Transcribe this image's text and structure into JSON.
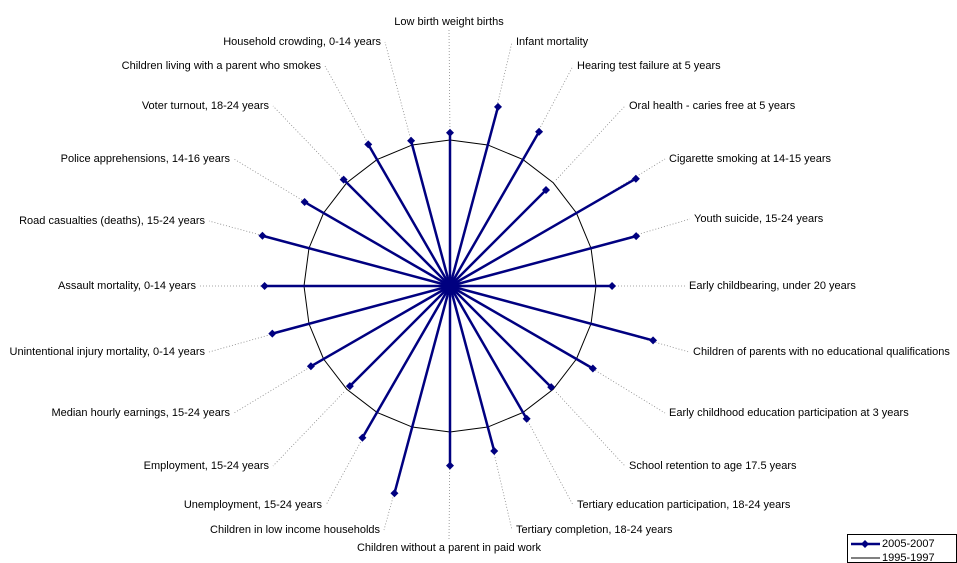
{
  "chart_data": {
    "type": "radar",
    "categories": [
      "Low birth weight births",
      "Infant mortality",
      "Hearing test failure at 5 years",
      "Oral health - caries free at 5 years",
      "Cigarette smoking at 14-15 years",
      "Youth suicide, 15-24 years",
      "Early childbearing, under 20 years",
      "Children of parents with no educational qualifications",
      "Early childhood education participation at 3 years",
      "School retention to age 17.5 years",
      "Tertiary education participation, 18-24 years",
      "Tertiary completion, 18-24 years",
      "Children without a parent in paid work",
      "Children in low income households",
      "Unemployment, 15-24 years",
      "Employment, 15-24 years",
      "Median hourly earnings, 15-24 years",
      "Unintentional injury mortality, 0-14 years",
      "Assault mortality, 0-14 years",
      "Road casualties (deaths), 15-24 years",
      "Police apprehensions, 14-16 years",
      "Voter turnout, 18-24 years",
      "Children living with a parent who smokes",
      "Household crowding, 0-14 years"
    ],
    "series": [
      {
        "name": "2005-2007",
        "color": "#000080",
        "values": [
          1.05,
          1.27,
          1.22,
          0.93,
          1.47,
          1.32,
          1.11,
          1.44,
          1.13,
          0.98,
          1.05,
          1.17,
          1.23,
          1.47,
          1.2,
          0.97,
          1.1,
          1.26,
          1.27,
          1.33,
          1.15,
          1.03,
          1.12,
          1.03
        ]
      },
      {
        "name": "1995-1997",
        "color": "#000000",
        "values": [
          1,
          1,
          1,
          1,
          1,
          1,
          1,
          1,
          1,
          1,
          1,
          1,
          1,
          1,
          1,
          1,
          1,
          1,
          1,
          1,
          1,
          1,
          1,
          1
        ]
      }
    ],
    "rlim": [
      0,
      1.6
    ],
    "legend": "bottom-right"
  }
}
